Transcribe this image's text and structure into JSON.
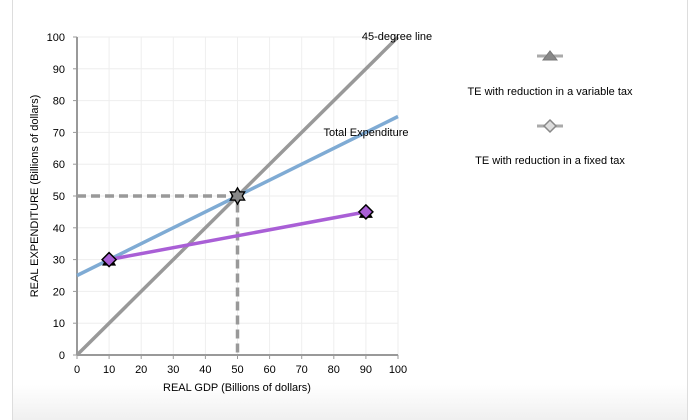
{
  "chart_data": {
    "type": "line",
    "xlabel": "REAL GDP (Billions of dollars)",
    "ylabel": "REAL EXPENDITURE (Billions of dollars)",
    "xlim": [
      0,
      100
    ],
    "ylim": [
      0,
      100
    ],
    "xticks": [
      0,
      10,
      20,
      30,
      40,
      50,
      60,
      70,
      80,
      90,
      100
    ],
    "yticks": [
      0,
      10,
      20,
      30,
      40,
      50,
      60,
      70,
      80,
      90,
      100
    ],
    "grid": true,
    "lines": [
      {
        "label": "45-degree line",
        "points": [
          [
            0,
            0
          ],
          [
            100,
            100
          ]
        ],
        "color": "#999999"
      },
      {
        "label": "Total Expenditure",
        "points": [
          [
            0,
            25
          ],
          [
            100,
            75
          ]
        ],
        "color": "#7fabd4"
      },
      {
        "points": [
          [
            10,
            30
          ],
          [
            90,
            45
          ]
        ],
        "color": "#a95fd6"
      }
    ],
    "guides": {
      "points": [
        [
          0,
          50
        ],
        [
          50,
          50
        ],
        [
          50,
          0
        ]
      ],
      "color": "#999999",
      "style": "dashed"
    },
    "equilibrium_marker": {
      "x": 50,
      "y": 50,
      "shape": "star",
      "color": "#888888"
    },
    "purple_markers": [
      {
        "x": 10,
        "y": 30
      },
      {
        "x": 90,
        "y": 45
      }
    ],
    "legend": {
      "placement": "right",
      "entries": [
        {
          "name": "TE with reduction in a variable tax",
          "marker": "triangle",
          "color": "#888888"
        },
        {
          "name": "TE with reduction in a fixed tax",
          "marker": "diamond",
          "color": "#888888"
        }
      ]
    }
  }
}
